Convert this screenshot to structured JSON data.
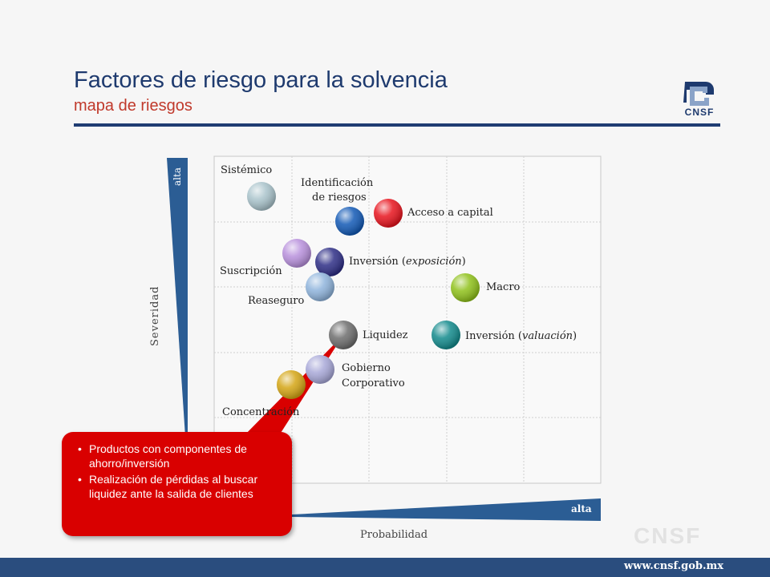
{
  "header": {
    "title": "Factores de riesgo para la solvencia",
    "subtitle": "mapa de riesgos"
  },
  "logo": {
    "text": "CNSF",
    "icon": "cnsf-logo-icon"
  },
  "axes": {
    "severity_label": "Severidad",
    "severity_high": "alta",
    "probability_label": "Probabilidad",
    "probability_high": "alta"
  },
  "risks": {
    "sistemico": "Sistémico",
    "identificacion_1": "Identificación",
    "identificacion_2": "de riesgos",
    "acceso_capital": "Acceso a capital",
    "suscripcion": "Suscripción",
    "inversion_exp_prefix": "Inversión (",
    "inversion_exp_italic": "exposición",
    "inversion_exp_suffix": ")",
    "macro": "Macro",
    "reaseguro": "Reaseguro",
    "liquidez": "Liquidez",
    "inversion_val_prefix": "Inversión (",
    "inversion_val_italic": "valuación",
    "inversion_val_suffix": ")",
    "gobierno_1": "Gobierno",
    "gobierno_2": "Corporativo",
    "concentracion": "Concentración"
  },
  "colors": {
    "sistemico": "#a9c3cb",
    "identificacion": "#1259b5",
    "acceso_capital": "#e8141e",
    "suscripcion": "#b890dc",
    "inversion_exp": "#2e2e86",
    "macro": "#8fc11a",
    "reaseguro": "#8fb4dc",
    "liquidez": "#6d6d6d",
    "inversion_val": "#128a8c",
    "gobierno": "#a8a8d8",
    "concentracion": "#d4a514",
    "axis_bar": "#2b5d94",
    "callout": "#d90000"
  },
  "callout": {
    "items": [
      "Productos con componentes de ahorro/inversión",
      "Realización de pérdidas al buscar liquidez ante la salida de clientes"
    ],
    "bullet": "•"
  },
  "footer": {
    "url": "www.cnsf.gob.mx",
    "watermark": "CNSF"
  }
}
